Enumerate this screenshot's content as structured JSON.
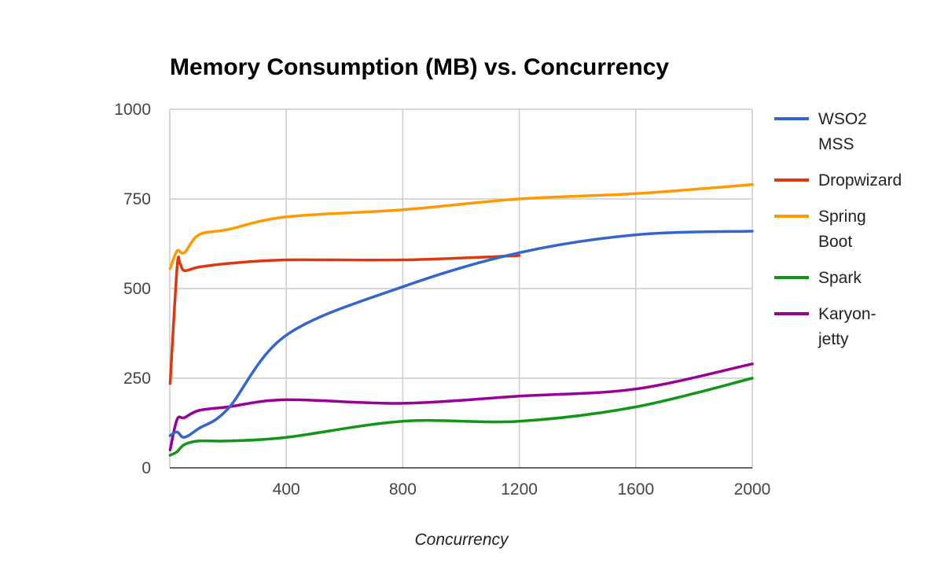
{
  "chart_data": {
    "type": "line",
    "title": "Memory Consumption (MB) vs. Concurrency",
    "xlabel": "Concurrency",
    "ylabel": "",
    "xlim": [
      0,
      2000
    ],
    "ylim": [
      0,
      1000
    ],
    "xticks": [
      400,
      800,
      1200,
      1600,
      2000
    ],
    "yticks": [
      0,
      250,
      500,
      750,
      1000
    ],
    "grid": true,
    "legend_position": "right",
    "series": [
      {
        "name": "WSO2 MSS",
        "legend_lines": [
          "WSO2",
          "MSS"
        ],
        "color": "#3366cc",
        "x": [
          1,
          25,
          50,
          100,
          200,
          400,
          800,
          1200,
          1600,
          2000
        ],
        "y": [
          90,
          100,
          85,
          110,
          165,
          370,
          505,
          600,
          650,
          660
        ]
      },
      {
        "name": "Dropwizard",
        "legend_lines": [
          "Dropwizard"
        ],
        "color": "#dc3912",
        "x": [
          1,
          25,
          35,
          50,
          100,
          200,
          400,
          800,
          1200
        ],
        "y": [
          235,
          560,
          570,
          550,
          560,
          570,
          580,
          580,
          592
        ]
      },
      {
        "name": "Spring Boot",
        "legend_lines": [
          "Spring",
          "Boot"
        ],
        "color": "#ff9900",
        "x": [
          1,
          25,
          50,
          100,
          200,
          400,
          800,
          1200,
          1600,
          2000
        ],
        "y": [
          555,
          605,
          600,
          650,
          665,
          700,
          720,
          750,
          765,
          790
        ]
      },
      {
        "name": "Spark",
        "legend_lines": [
          "Spark"
        ],
        "color": "#109618",
        "x": [
          1,
          25,
          50,
          100,
          200,
          400,
          800,
          1200,
          1600,
          2000
        ],
        "y": [
          35,
          45,
          65,
          75,
          75,
          85,
          130,
          130,
          170,
          250
        ]
      },
      {
        "name": "Karyon-jetty",
        "legend_lines": [
          "Karyon-",
          "jetty"
        ],
        "color": "#990099",
        "x": [
          1,
          25,
          50,
          100,
          200,
          400,
          800,
          1200,
          1600,
          2000
        ],
        "y": [
          50,
          135,
          140,
          160,
          170,
          190,
          180,
          200,
          220,
          290
        ]
      }
    ]
  }
}
